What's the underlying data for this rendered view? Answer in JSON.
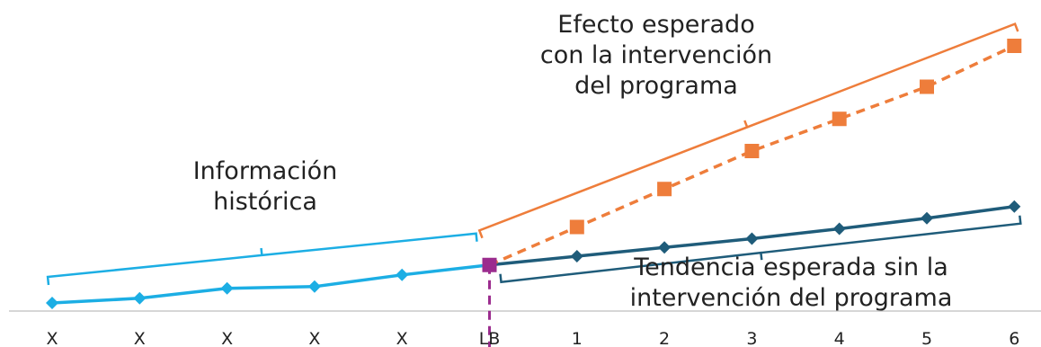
{
  "chart_data": {
    "type": "line",
    "categories": [
      "X",
      "X",
      "X",
      "X",
      "X",
      "LB",
      "1",
      "2",
      "3",
      "4",
      "5",
      "6"
    ],
    "series": [
      {
        "color": "#1CAEE4",
        "marker": "diamond",
        "values": [
          2.0,
          2.8,
          4.5,
          4.8,
          6.8,
          8.5,
          null,
          null,
          null,
          null,
          null,
          null
        ]
      },
      {
        "color": "#1F5C7A",
        "marker": "diamond",
        "values": [
          null,
          null,
          null,
          null,
          null,
          8.5,
          10.0,
          11.5,
          13.0,
          14.7,
          16.5,
          18.5
        ]
      },
      {
        "color": "#EE7D3B",
        "marker": "square",
        "line_style": "dashed",
        "values": [
          null,
          null,
          null,
          null,
          null,
          8.5,
          15.0,
          21.5,
          28.0,
          33.5,
          39.0,
          46.0
        ]
      }
    ],
    "baseline_marker": {
      "category": "LB",
      "color": "#9B2C8E",
      "style": "dashed-vertical"
    },
    "annotations": {
      "historical": [
        "Información",
        "histórica"
      ],
      "expected_effect": [
        "Efecto esperado",
        "con la intervención",
        "del programa"
      ],
      "expected_trend": [
        "Tendencia esperada sin la",
        "intervención del  programa"
      ]
    },
    "ylim": [
      0,
      50
    ],
    "grid": false,
    "legend": "none"
  }
}
